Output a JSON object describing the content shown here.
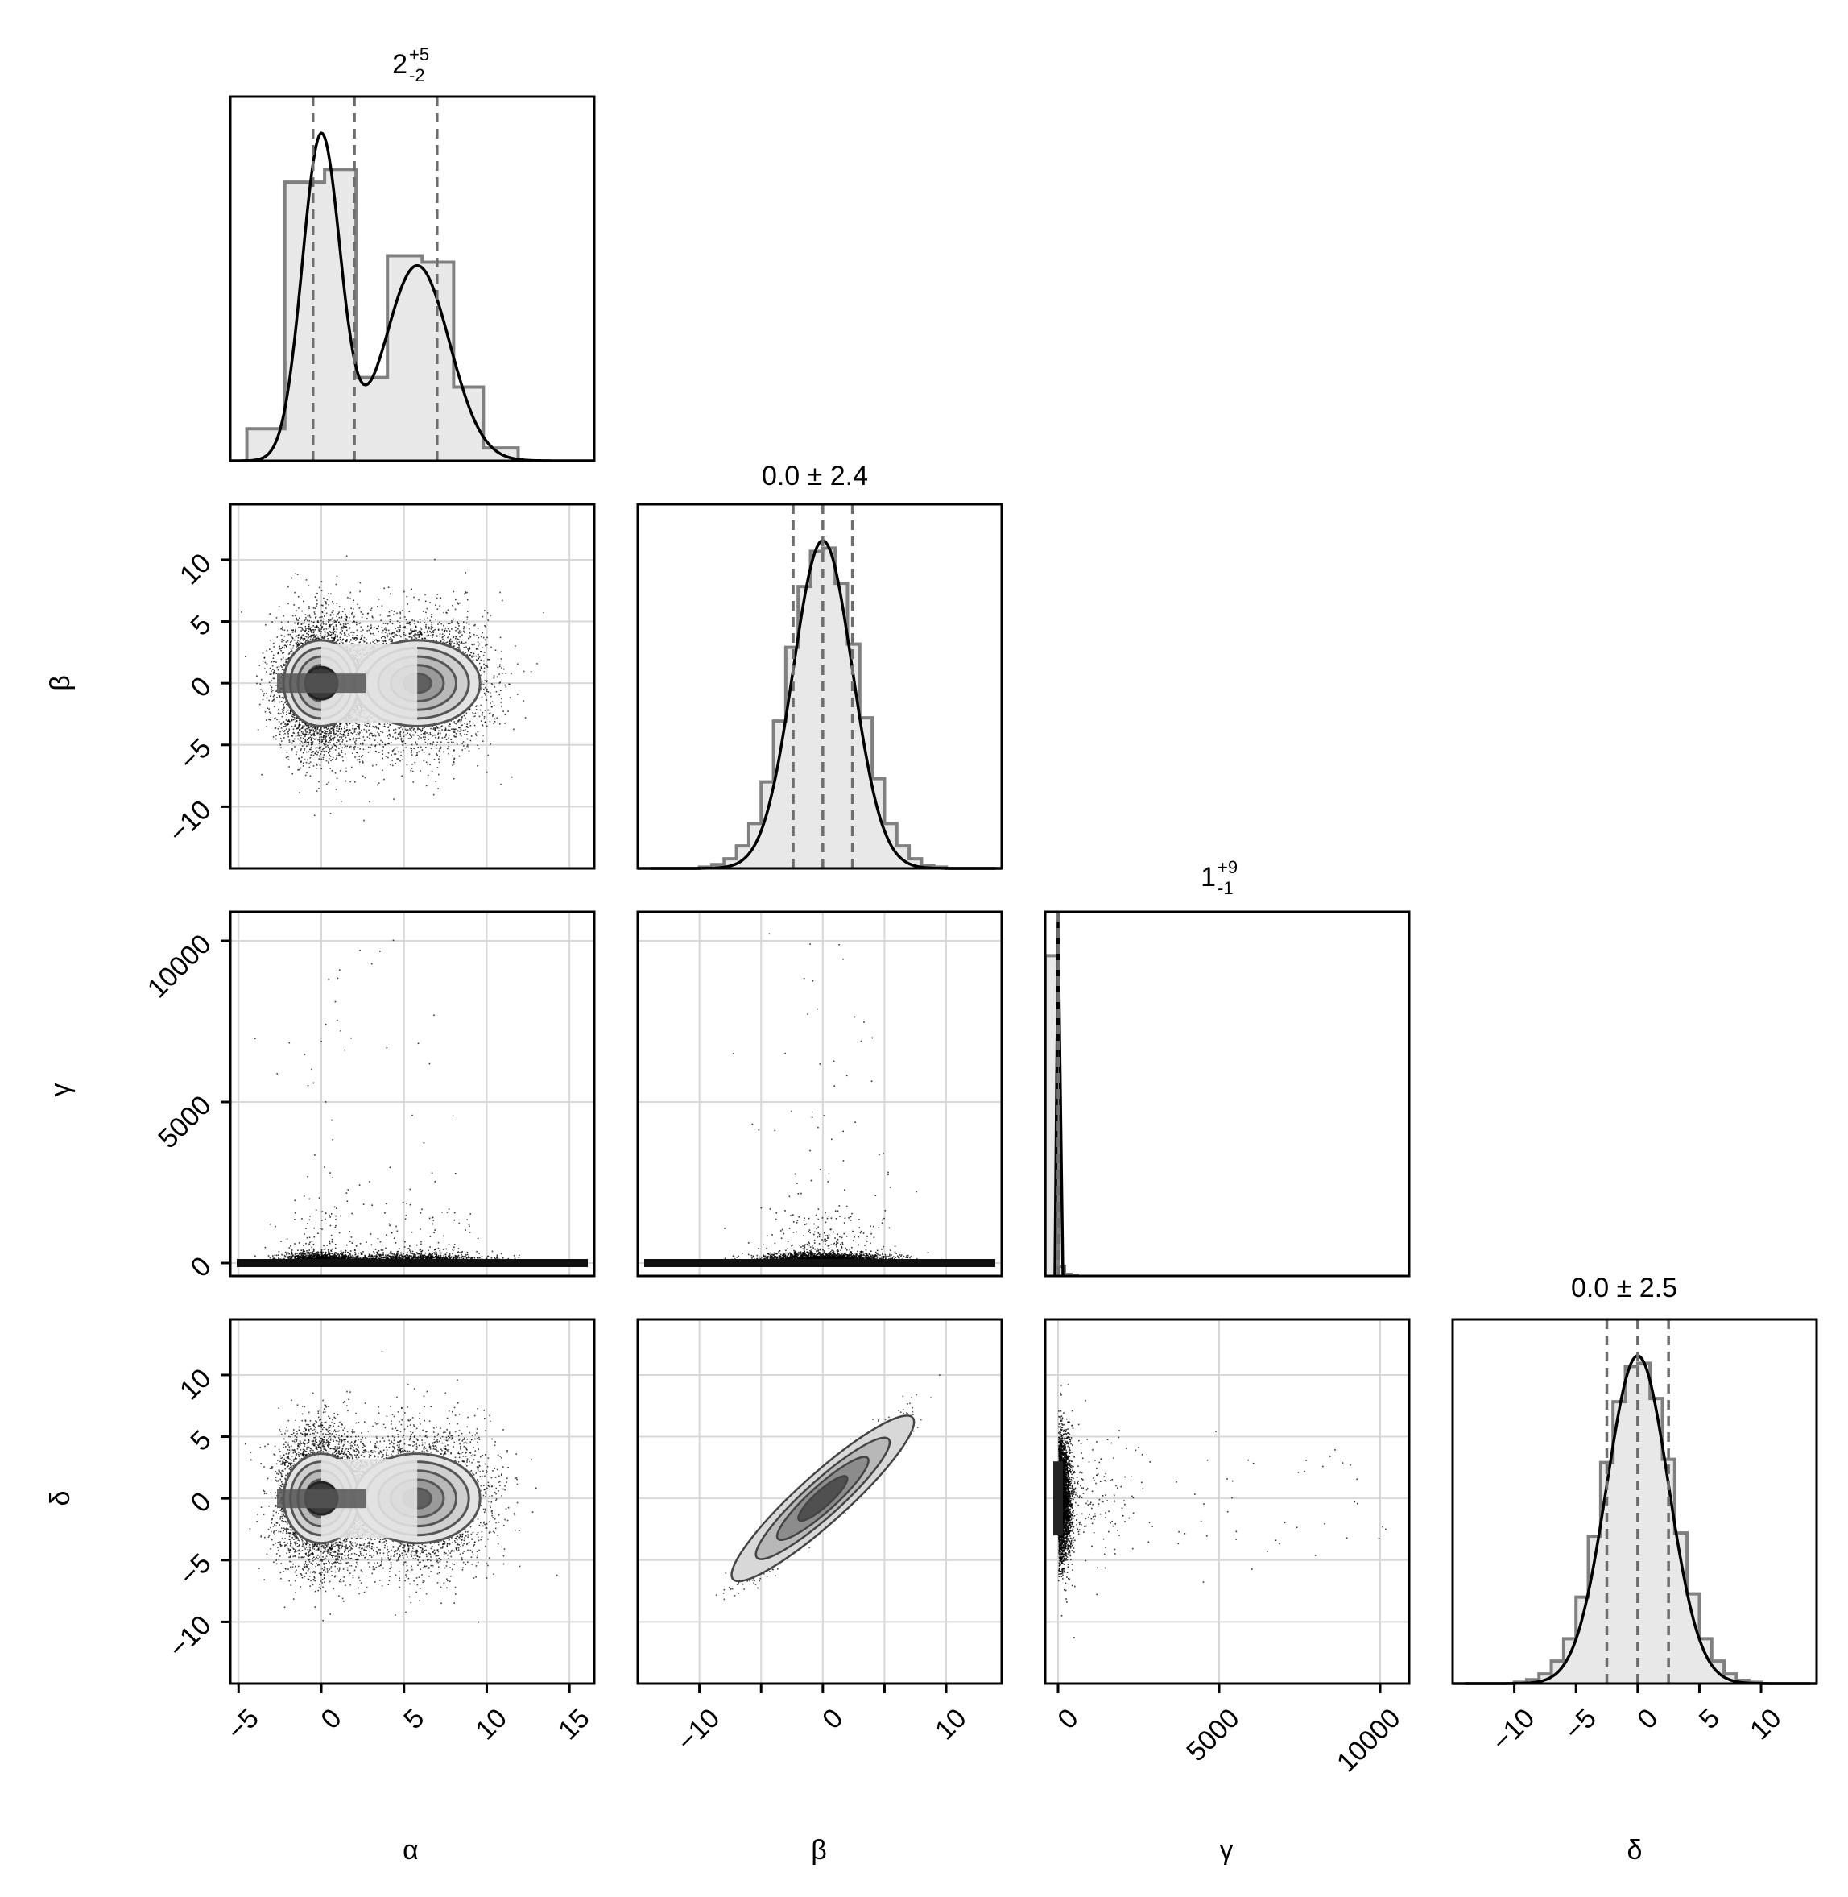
{
  "chart_data": {
    "type": "corner",
    "params": [
      "α",
      "β",
      "γ",
      "δ"
    ],
    "axis_ranges": {
      "α": [
        -5.5,
        16.5
      ],
      "β": [
        -15,
        14.5
      ],
      "γ": [
        -400,
        10900
      ],
      "δ": [
        -15,
        14.5
      ]
    },
    "ticks": {
      "α": [
        -5,
        0,
        5,
        10,
        15
      ],
      "β": [
        -10,
        -5,
        0,
        5,
        10
      ],
      "γ": [
        0,
        5000,
        10000
      ],
      "δ": [
        -10,
        -5,
        0,
        5,
        10
      ]
    },
    "tick_labels": {
      "α": [
        "−5",
        "0",
        "5",
        "10",
        "15"
      ],
      "β_x": [
        "−10",
        "0",
        "10"
      ],
      "β_y": [
        "−10",
        "−5",
        "0",
        "5",
        "10"
      ],
      "γ": [
        "0",
        "5000",
        "10000"
      ],
      "δ_x": [
        "−10",
        "−5",
        "0",
        "5",
        "10"
      ],
      "δ_y": [
        "−10",
        "−5",
        "0",
        "5",
        "10"
      ]
    },
    "grid": true,
    "diagonal_titles": [
      {
        "param": "α",
        "main": "2",
        "sup": "+5",
        "sub": "-2"
      },
      {
        "param": "β",
        "main": "0.0 ± 2.4",
        "sup": "",
        "sub": ""
      },
      {
        "param": "γ",
        "main": "1",
        "sup": "+9",
        "sub": "-1"
      },
      {
        "param": "δ",
        "main": "0.0 ± 2.5",
        "sup": "",
        "sub": ""
      }
    ],
    "quantile_lines": {
      "α": [
        -0.5,
        2,
        7
      ],
      "β": [
        -2.4,
        0,
        2.4
      ],
      "γ": [
        0,
        1,
        10
      ],
      "δ": [
        -2.5,
        0,
        2.5
      ]
    },
    "histograms": {
      "α": {
        "bin_edges": [
          -4.5,
          -2.2,
          0.2,
          2.1,
          4.0,
          6.1,
          8.0,
          9.8,
          11.9
        ],
        "heights": [
          0.1,
          0.87,
          0.91,
          0.26,
          0.64,
          0.62,
          0.23,
          0.04
        ]
      },
      "β": {
        "bin_edges": [
          -14,
          -13,
          -12,
          -11,
          -10,
          -9,
          -8,
          -7,
          -6,
          -5,
          -4,
          -3,
          -2,
          -1,
          0,
          1,
          2,
          3,
          4,
          5,
          6,
          7,
          8,
          9,
          10,
          11,
          12,
          13,
          14
        ],
        "heights": [
          0.0,
          0.0,
          0.0,
          0.0,
          0.004,
          0.012,
          0.03,
          0.07,
          0.14,
          0.27,
          0.46,
          0.69,
          0.88,
          0.99,
          1.0,
          0.89,
          0.7,
          0.47,
          0.28,
          0.14,
          0.07,
          0.03,
          0.01,
          0.004,
          0.0,
          0.0,
          0.0,
          0.0
        ]
      },
      "γ": {
        "bin_edges": [
          -400,
          0,
          200,
          400,
          600
        ],
        "heights": [
          1.0,
          0.03,
          0.005,
          0.002
        ]
      },
      "δ": {
        "bin_edges": [
          -14,
          -13,
          -12,
          -11,
          -10,
          -9,
          -8,
          -7,
          -6,
          -5,
          -4,
          -3,
          -2,
          -1,
          0,
          1,
          2,
          3,
          4,
          5,
          6,
          7,
          8,
          9,
          10,
          11,
          12,
          13,
          14
        ],
        "heights": [
          0.0,
          0.0,
          0.0,
          0.0,
          0.004,
          0.012,
          0.03,
          0.07,
          0.14,
          0.27,
          0.46,
          0.69,
          0.88,
          0.99,
          1.0,
          0.89,
          0.7,
          0.47,
          0.28,
          0.14,
          0.07,
          0.03,
          0.01,
          0.004,
          0.0,
          0.0,
          0.0,
          0.0
        ]
      }
    },
    "kde_curves": {
      "α": {
        "components": [
          {
            "mean": 0,
            "sd": 1.15,
            "weight": 1.0
          },
          {
            "mean": 5.8,
            "sd": 1.95,
            "weight": 0.6
          }
        ]
      },
      "β": {
        "components": [
          {
            "mean": 0,
            "sd": 2.4,
            "weight": 1.0
          }
        ]
      },
      "δ": {
        "components": [
          {
            "mean": 0,
            "sd": 2.5,
            "weight": 1.0
          }
        ]
      }
    },
    "scatter_panels": [
      {
        "x": "α",
        "y": "β",
        "shape": "bimodal",
        "centers": [
          [
            0,
            0
          ],
          [
            5.8,
            0
          ]
        ],
        "spread": [
          [
            1.2,
            2.4
          ],
          [
            2.0,
            2.4
          ]
        ]
      },
      {
        "x": "α",
        "y": "γ",
        "shape": "band",
        "y_level": 0
      },
      {
        "x": "β",
        "y": "γ",
        "shape": "band",
        "y_level": 0
      },
      {
        "x": "α",
        "y": "δ",
        "shape": "bimodal",
        "centers": [
          [
            0,
            0
          ],
          [
            5.8,
            0
          ]
        ],
        "spread": [
          [
            1.2,
            2.5
          ],
          [
            2.0,
            2.5
          ]
        ]
      },
      {
        "x": "β",
        "y": "δ",
        "shape": "correlated",
        "correlation": 0.95
      },
      {
        "x": "γ",
        "y": "δ",
        "shape": "vertical_band",
        "x_level": 0
      }
    ]
  }
}
